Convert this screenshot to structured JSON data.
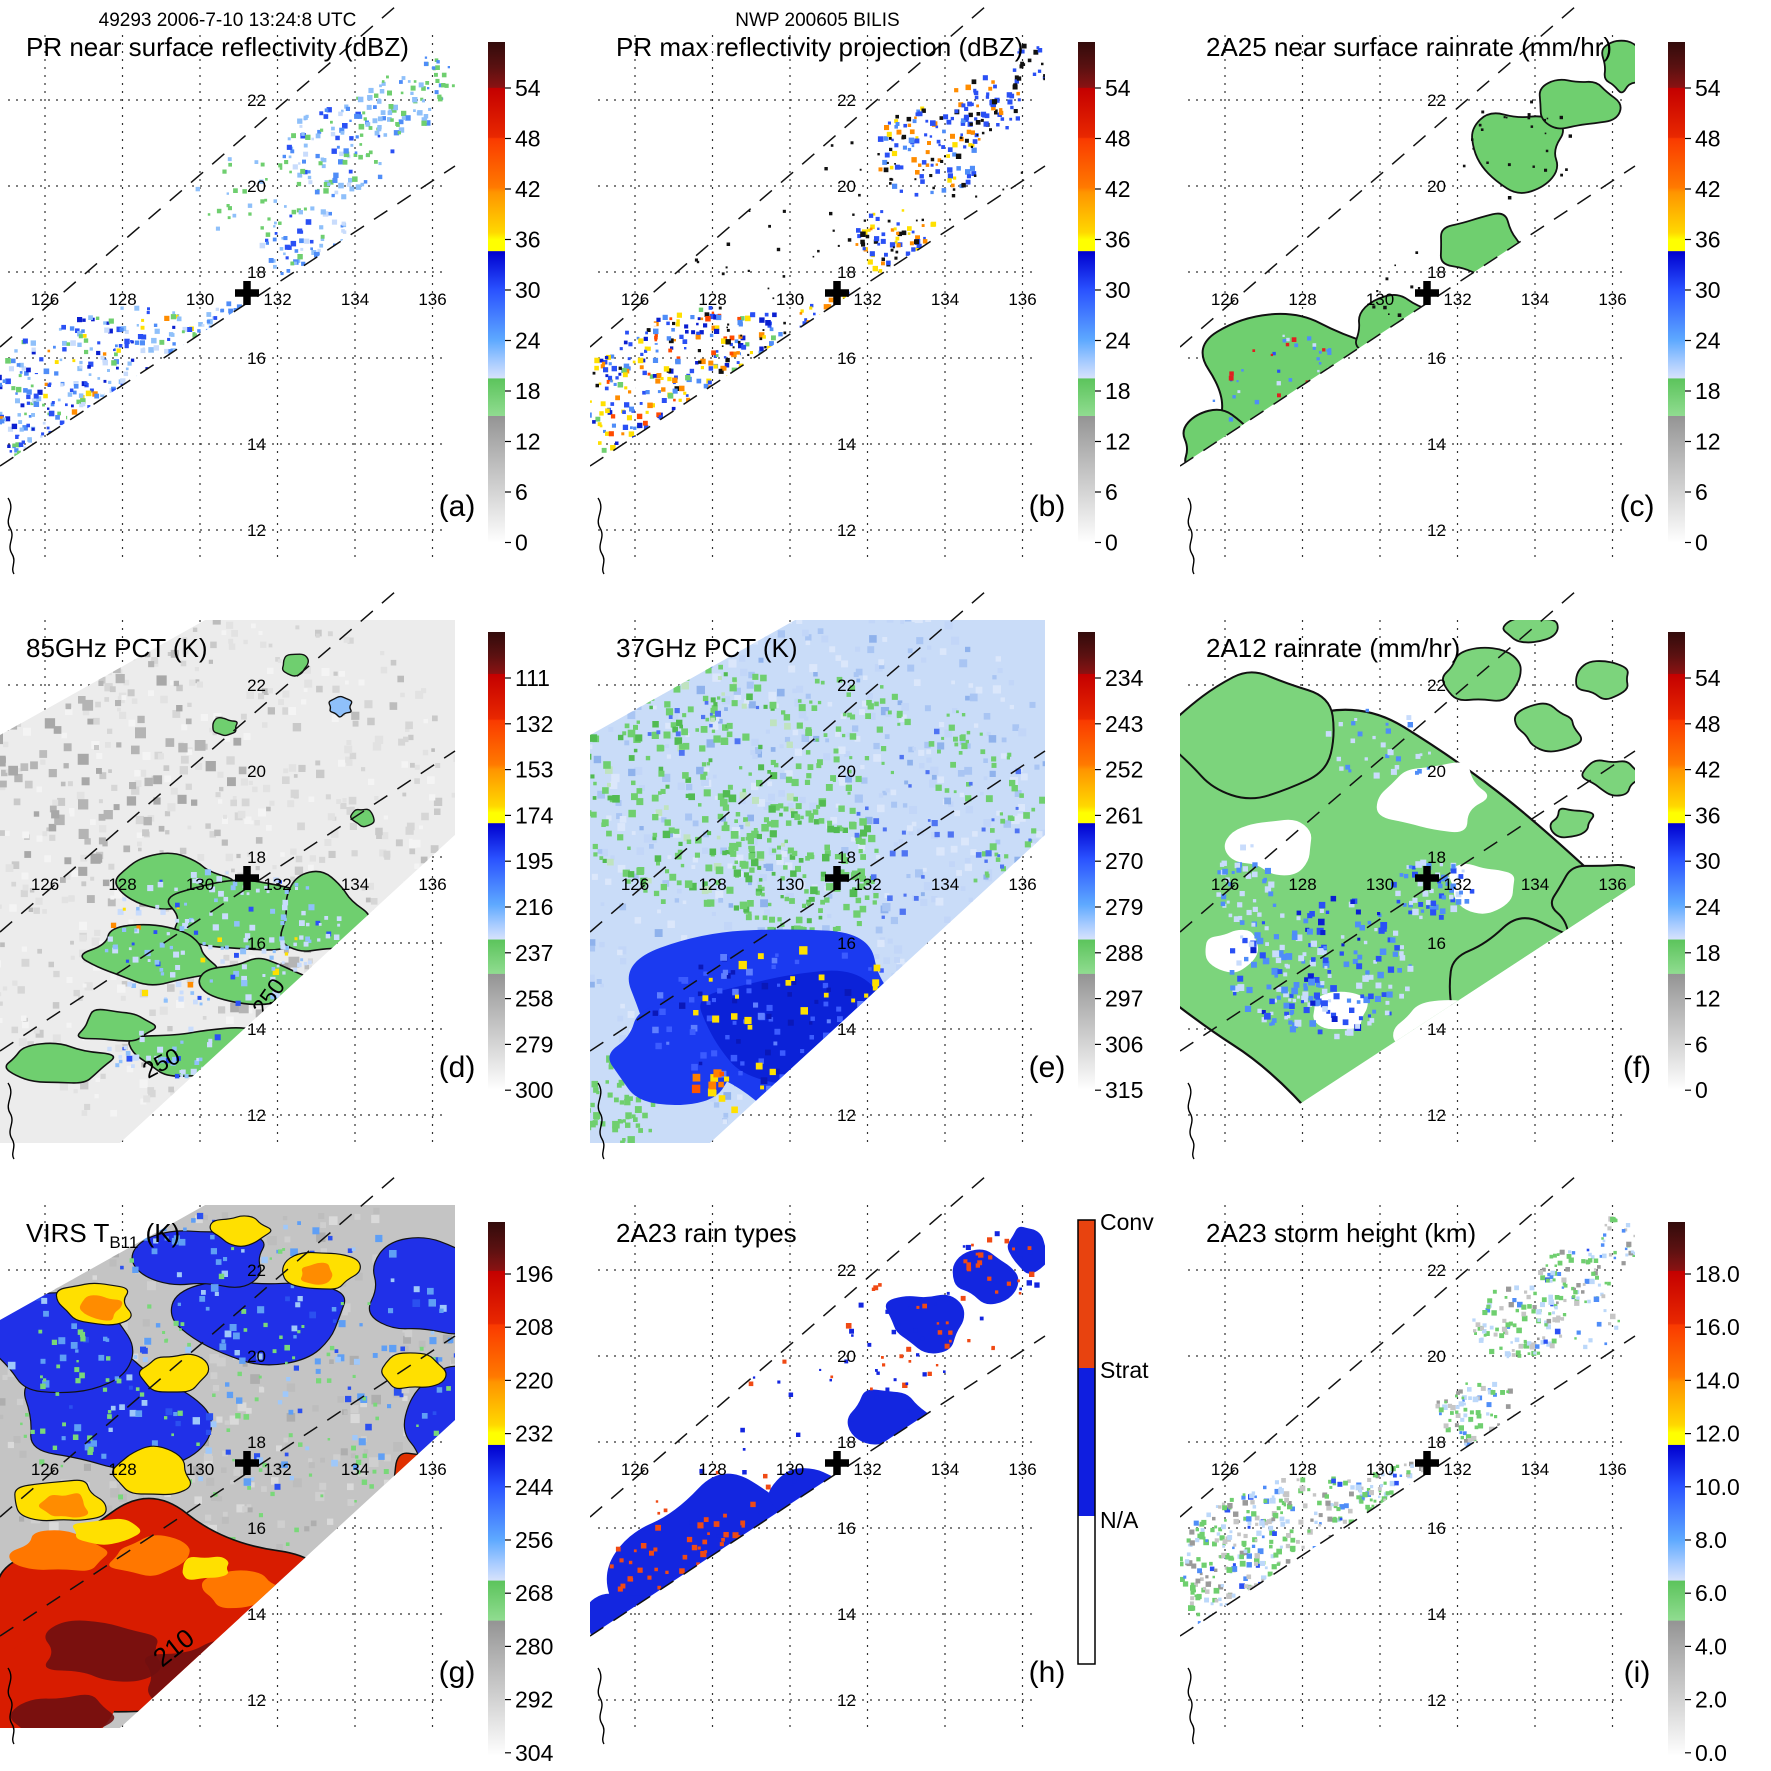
{
  "header": {
    "left": "49293 2006-7-10 13:24:8 UTC",
    "center": "NWP 200605 BILIS"
  },
  "geo": {
    "lon_labels": [
      "126",
      "128",
      "130",
      "132",
      "134",
      "136"
    ],
    "lat_labels": [
      "22",
      "20",
      "18",
      "16",
      "14",
      "12"
    ],
    "storm_center_cross": {
      "lon": 131.3,
      "lat": 17.7
    }
  },
  "colors": {
    "colormap_stops": [
      [
        "0.000",
        "#320b0b"
      ],
      [
        "0.050",
        "#5a1111"
      ],
      [
        "0.091",
        "#8a1212"
      ],
      [
        "0.092",
        "#c40000"
      ],
      [
        "0.190",
        "#e92800"
      ],
      [
        "0.193",
        "#fa3a00"
      ],
      [
        "0.290",
        "#ff7a00"
      ],
      [
        "0.300",
        "#ff9400"
      ],
      [
        "0.380",
        "#ffd800"
      ],
      [
        "0.395",
        "#ffff00"
      ],
      [
        "0.417",
        "#ffff00"
      ],
      [
        "0.418",
        "#0000cf"
      ],
      [
        "0.495",
        "#2a52ff"
      ],
      [
        "0.595",
        "#5ea9ff"
      ],
      [
        "0.640",
        "#a9ccff"
      ],
      [
        "0.671",
        "#d6e2fc"
      ],
      [
        "0.672",
        "#5cc45c"
      ],
      [
        "0.746",
        "#90dc90"
      ],
      [
        "0.747",
        "#949494"
      ],
      [
        "0.798",
        "#ababab"
      ],
      [
        "0.898",
        "#d4d4d4"
      ],
      [
        "1.000",
        "#ffffff"
      ]
    ],
    "rain_type": {
      "conv": "#e8430f",
      "strat": "#0f1ee0",
      "na": "#ffffff"
    }
  },
  "panels": [
    {
      "key": "a",
      "letter": "(a)",
      "title": "PR near surface reflectivity (dBZ)",
      "title_sub": "",
      "title_end": "",
      "cbar_type": "standard",
      "cbar_ticks": [
        "54",
        "48",
        "42",
        "36",
        "30",
        "24",
        "18",
        "12",
        "6",
        "0"
      ]
    },
    {
      "key": "b",
      "letter": "(b)",
      "title": "PR max reflectivity projection (dBZ)",
      "title_sub": "",
      "title_end": "",
      "cbar_type": "standard",
      "cbar_ticks": [
        "54",
        "48",
        "42",
        "36",
        "30",
        "24",
        "18",
        "12",
        "6",
        "0"
      ]
    },
    {
      "key": "c",
      "letter": "(c)",
      "title": "2A25 near surface rainrate (mm/hr)",
      "title_sub": "",
      "title_end": "",
      "cbar_type": "standard",
      "cbar_ticks": [
        "54",
        "48",
        "42",
        "36",
        "30",
        "24",
        "18",
        "12",
        "6",
        "0"
      ]
    },
    {
      "key": "d",
      "letter": "(d)",
      "title": "85GHz PCT (K)",
      "title_sub": "",
      "title_end": "",
      "cbar_type": "standard",
      "cbar_ticks": [
        "111",
        "132",
        "153",
        "174",
        "195",
        "216",
        "237",
        "258",
        "279",
        "300"
      ],
      "contour_labels": [
        "250",
        "250"
      ]
    },
    {
      "key": "e",
      "letter": "(e)",
      "title": "37GHz PCT (K)",
      "title_sub": "",
      "title_end": "",
      "cbar_type": "standard",
      "cbar_ticks": [
        "234",
        "243",
        "252",
        "261",
        "270",
        "279",
        "288",
        "297",
        "306",
        "315"
      ]
    },
    {
      "key": "f",
      "letter": "(f)",
      "title": "2A12 rainrate (mm/hr)",
      "title_sub": "",
      "title_end": "",
      "cbar_type": "standard",
      "cbar_ticks": [
        "54",
        "48",
        "42",
        "36",
        "30",
        "24",
        "18",
        "12",
        "6",
        "0"
      ]
    },
    {
      "key": "g",
      "letter": "(g)",
      "title": "VIRS T",
      "title_sub": "B11",
      "title_end": " (K)",
      "cbar_type": "standard",
      "cbar_ticks": [
        "196",
        "208",
        "220",
        "232",
        "244",
        "256",
        "268",
        "280",
        "292",
        "304"
      ],
      "contour_labels": [
        "210"
      ]
    },
    {
      "key": "h",
      "letter": "(h)",
      "title": "2A23 rain types",
      "title_sub": "",
      "title_end": "",
      "cbar_type": "raintype",
      "cbar_labels": [
        "Conv",
        "Strat",
        "N/A"
      ]
    },
    {
      "key": "i",
      "letter": "(i)",
      "title": "2A23 storm height (km)",
      "title_sub": "",
      "title_end": "",
      "cbar_type": "standard",
      "cbar_ticks": [
        "18.0",
        "16.0",
        "14.0",
        "12.0",
        "10.0",
        "8.0",
        "6.0",
        "4.0",
        "2.0",
        "0.0"
      ]
    }
  ],
  "chart_data": [
    {
      "panel": "(a)",
      "type": "heatmap",
      "title": "PR near surface reflectivity (dBZ)",
      "colorbar_ticks_top_to_bottom": [
        54,
        48,
        42,
        36,
        30,
        24,
        18,
        12,
        6,
        0
      ],
      "lon_ticks": [
        126,
        128,
        130,
        132,
        134,
        136
      ],
      "lat_ticks": [
        22,
        20,
        18,
        16,
        14,
        12
      ]
    },
    {
      "panel": "(b)",
      "type": "heatmap",
      "title": "PR max reflectivity projection (dBZ)",
      "colorbar_ticks_top_to_bottom": [
        54,
        48,
        42,
        36,
        30,
        24,
        18,
        12,
        6,
        0
      ],
      "lon_ticks": [
        126,
        128,
        130,
        132,
        134,
        136
      ],
      "lat_ticks": [
        22,
        20,
        18,
        16,
        14,
        12
      ]
    },
    {
      "panel": "(c)",
      "type": "heatmap",
      "title": "2A25 near surface rainrate (mm/hr)",
      "colorbar_ticks_top_to_bottom": [
        54,
        48,
        42,
        36,
        30,
        24,
        18,
        12,
        6,
        0
      ],
      "lon_ticks": [
        126,
        128,
        130,
        132,
        134,
        136
      ],
      "lat_ticks": [
        22,
        20,
        18,
        16,
        14,
        12
      ]
    },
    {
      "panel": "(d)",
      "type": "heatmap",
      "title": "85GHz PCT (K)",
      "colorbar_ticks_top_to_bottom": [
        111,
        132,
        153,
        174,
        195,
        216,
        237,
        258,
        279,
        300
      ],
      "contour_labels": [
        "250",
        "250"
      ],
      "lon_ticks": [
        126,
        128,
        130,
        132,
        134,
        136
      ],
      "lat_ticks": [
        22,
        20,
        18,
        16,
        14,
        12
      ]
    },
    {
      "panel": "(e)",
      "type": "heatmap",
      "title": "37GHz PCT (K)",
      "colorbar_ticks_top_to_bottom": [
        234,
        243,
        252,
        261,
        270,
        279,
        288,
        297,
        306,
        315
      ],
      "lon_ticks": [
        126,
        128,
        130,
        132,
        134,
        136
      ],
      "lat_ticks": [
        22,
        20,
        18,
        16,
        14,
        12
      ]
    },
    {
      "panel": "(f)",
      "type": "heatmap",
      "title": "2A12 rainrate (mm/hr)",
      "colorbar_ticks_top_to_bottom": [
        54,
        48,
        42,
        36,
        30,
        24,
        18,
        12,
        6,
        0
      ],
      "lon_ticks": [
        126,
        128,
        130,
        132,
        134,
        136
      ],
      "lat_ticks": [
        22,
        20,
        18,
        16,
        14,
        12
      ]
    },
    {
      "panel": "(g)",
      "type": "heatmap",
      "title": "VIRS TB11 (K)",
      "colorbar_ticks_top_to_bottom": [
        196,
        208,
        220,
        232,
        244,
        256,
        268,
        280,
        292,
        304
      ],
      "contour_labels": [
        "210"
      ],
      "lon_ticks": [
        126,
        128,
        130,
        132,
        134,
        136
      ],
      "lat_ticks": [
        22,
        20,
        18,
        16,
        14,
        12
      ]
    },
    {
      "panel": "(h)",
      "type": "categorical-map",
      "title": "2A23 rain types",
      "categories_top_to_bottom": [
        "Conv",
        "Strat",
        "N/A"
      ],
      "lon_ticks": [
        126,
        128,
        130,
        132,
        134,
        136
      ],
      "lat_ticks": [
        22,
        20,
        18,
        16,
        14,
        12
      ]
    },
    {
      "panel": "(i)",
      "type": "heatmap",
      "title": "2A23 storm height (km)",
      "colorbar_ticks_top_to_bottom": [
        18.0,
        16.0,
        14.0,
        12.0,
        10.0,
        8.0,
        6.0,
        4.0,
        2.0,
        0.0
      ],
      "lon_ticks": [
        126,
        128,
        130,
        132,
        134,
        136
      ],
      "lat_ticks": [
        22,
        20,
        18,
        16,
        14,
        12
      ]
    }
  ]
}
